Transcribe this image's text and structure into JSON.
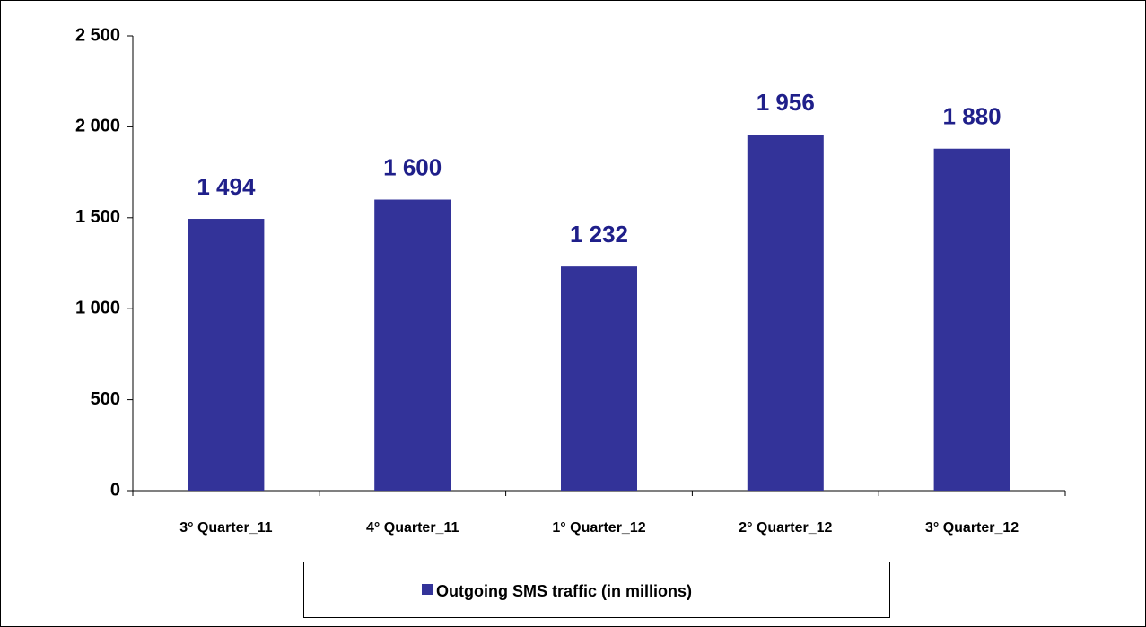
{
  "chart_data": {
    "type": "bar",
    "categories": [
      "3° Quarter_11",
      "4° Quarter_11",
      "1° Quarter_12",
      "2° Quarter_12",
      "3° Quarter_12"
    ],
    "series": [
      {
        "name": "Outgoing SMS traffic (in millions)",
        "color": "#333399",
        "values": [
          1494,
          1600,
          1232,
          1956,
          1880
        ],
        "value_labels": [
          "1 494",
          "1 600",
          "1 232",
          "1 956",
          "1 880"
        ]
      }
    ],
    "ylim": [
      0,
      2500
    ],
    "yticks": [
      0,
      500,
      {
        "value": 1000,
        "label": "1 000"
      },
      {
        "value": 1500,
        "label": "1 500"
      },
      {
        "value": 2000,
        "label": "2 000"
      },
      {
        "value": 2500,
        "label": "2 500"
      }
    ],
    "grid": false,
    "legend": "bottom"
  }
}
